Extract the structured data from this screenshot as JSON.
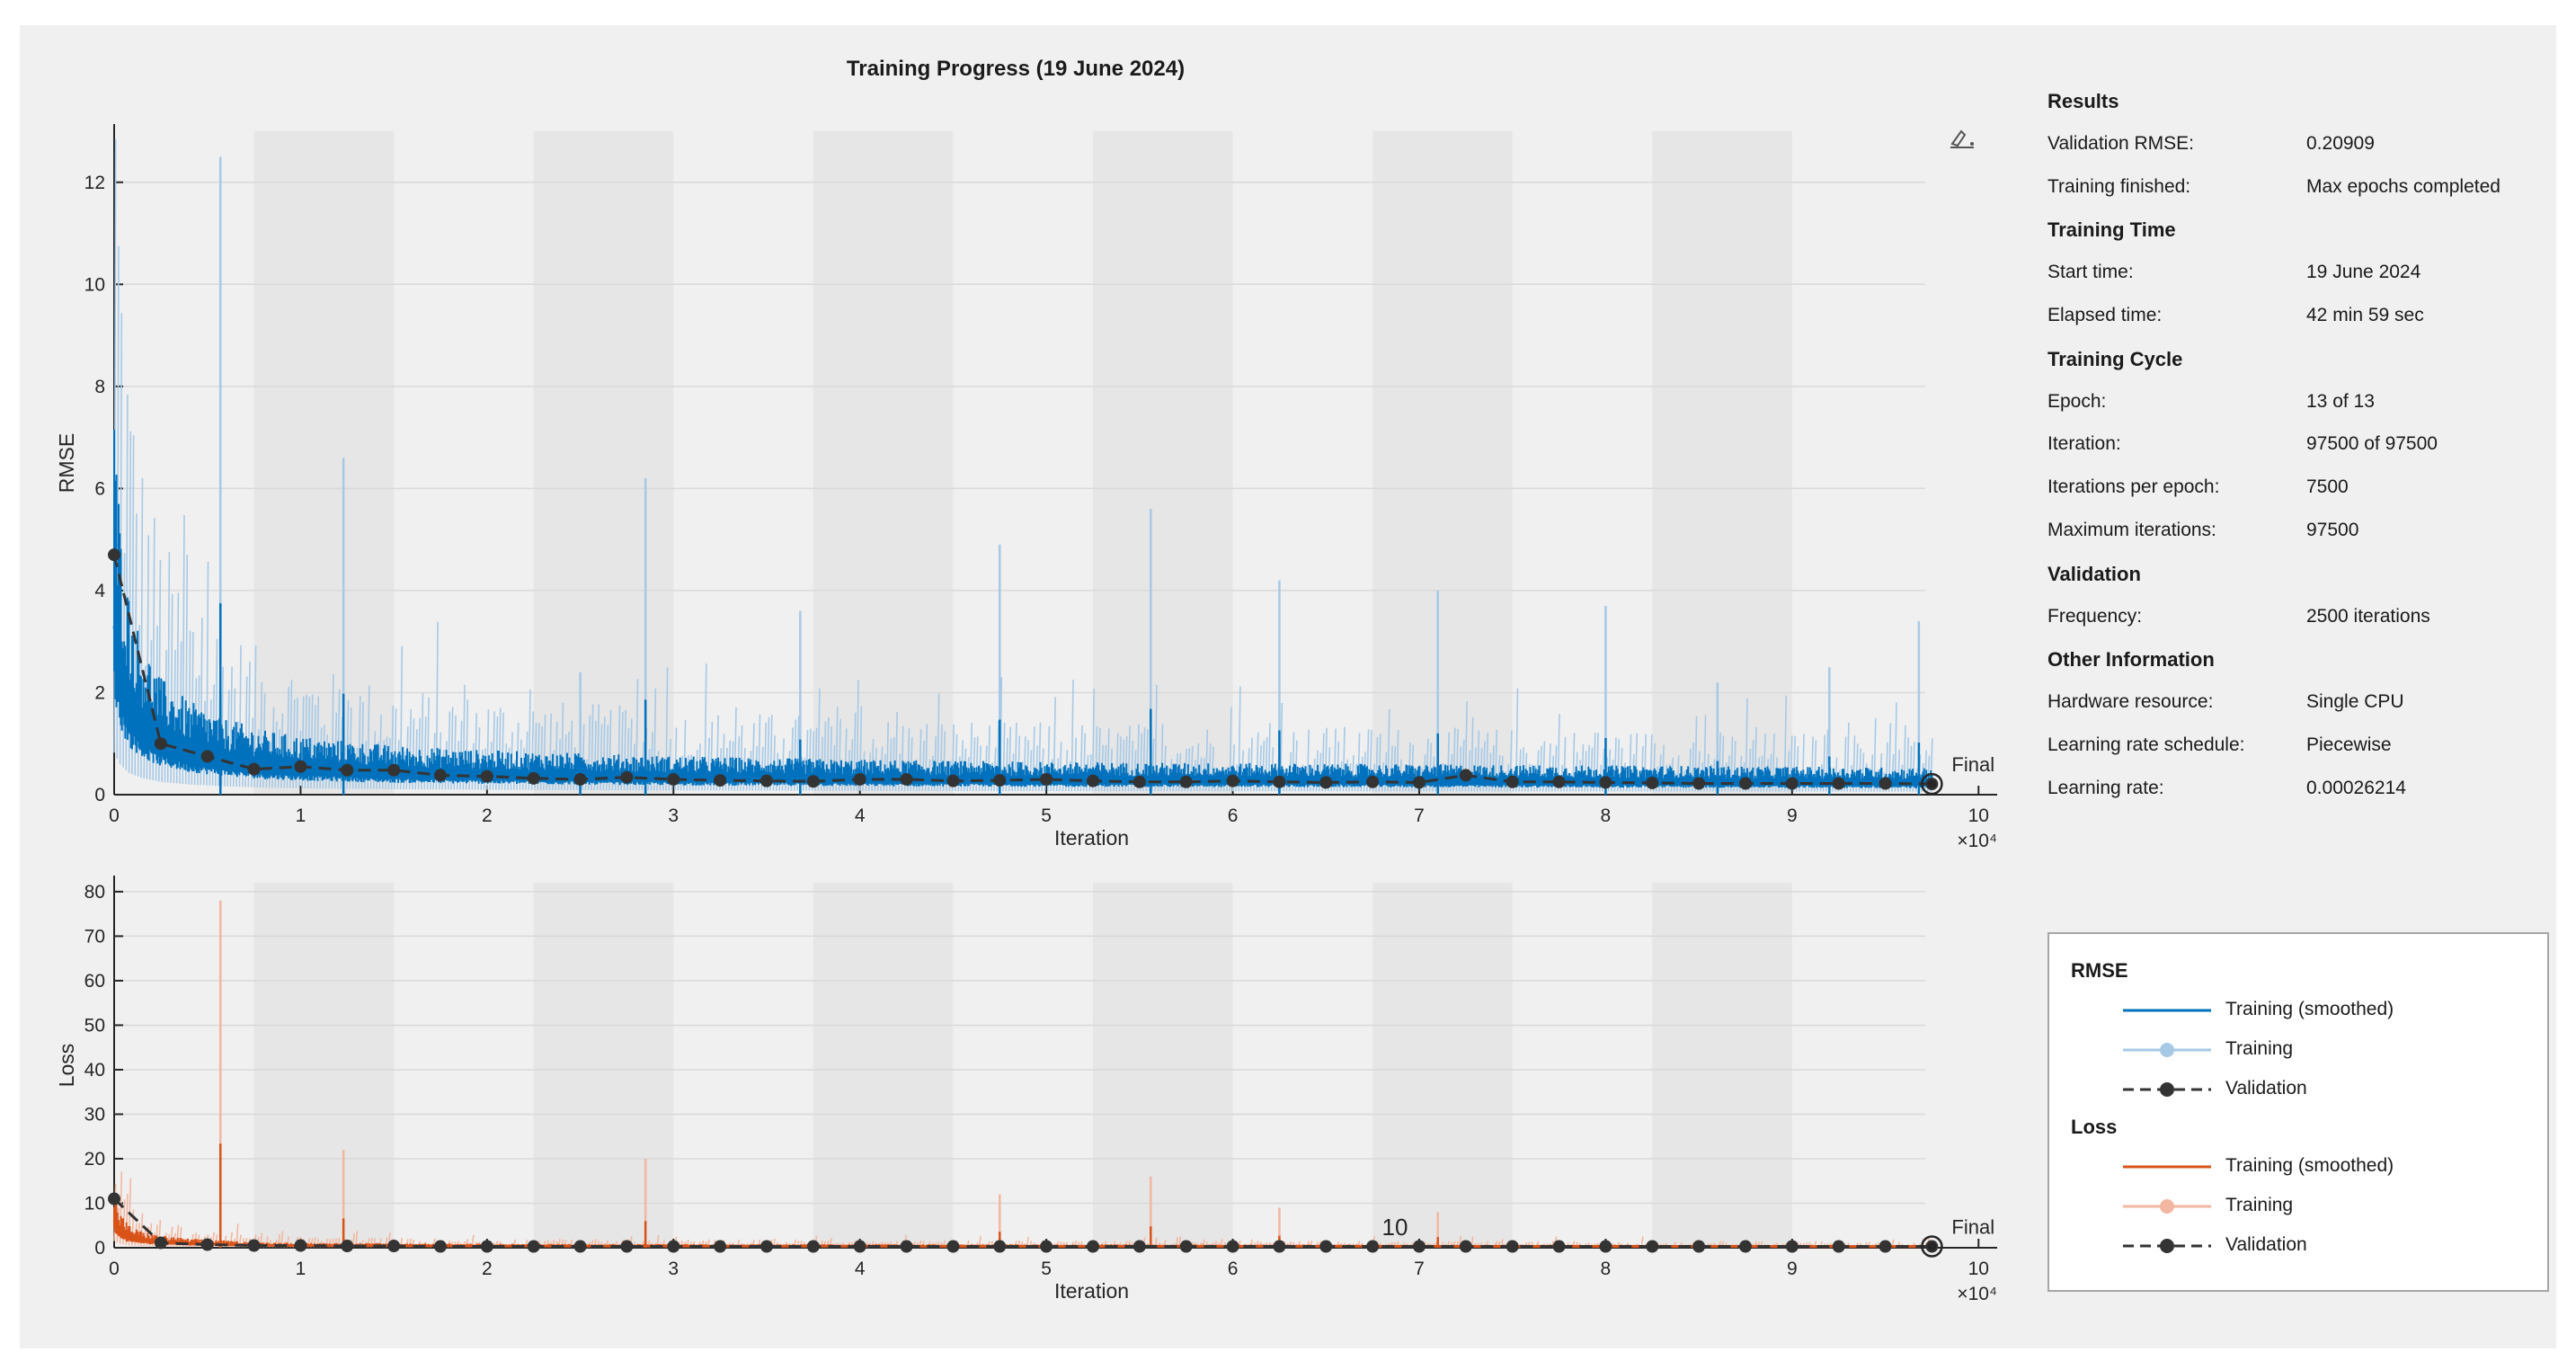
{
  "chart_data": {
    "type": "line",
    "title": "Training Progress (19 June 2024)",
    "x_exponent_label": "×10⁴",
    "epochs": 13,
    "iterations_per_epoch": 7500,
    "final_label": "Final",
    "annotation": "10",
    "panels": [
      {
        "name": "RMSE",
        "ylabel": "RMSE",
        "xlabel": "Iteration",
        "xlim": [
          0,
          101000
        ],
        "ylim": [
          0,
          13
        ],
        "xticks": [
          0,
          10000,
          20000,
          30000,
          40000,
          50000,
          60000,
          70000,
          80000,
          90000,
          100000
        ],
        "xtick_labels": [
          "0",
          "1",
          "2",
          "3",
          "4",
          "5",
          "6",
          "7",
          "8",
          "9",
          "10"
        ],
        "yticks": [
          0,
          2,
          4,
          6,
          8,
          10,
          12
        ],
        "ytick_labels": [
          "0",
          "2",
          "4",
          "6",
          "8",
          "10",
          "12"
        ],
        "series": [
          {
            "name": "Training (smoothed)",
            "color": "#0072bd",
            "x": [
              0,
              300,
              800,
              1500,
              2500,
              4000,
              6000,
              8000,
              10000,
              15000,
              20000,
              30000,
              40000,
              50000,
              60000,
              70000,
              80000,
              90000,
              97500
            ],
            "y": [
              3.3,
              2.4,
              1.7,
              1.3,
              1.0,
              0.8,
              0.65,
              0.55,
              0.5,
              0.42,
              0.38,
              0.33,
              0.3,
              0.28,
              0.27,
              0.26,
              0.25,
              0.24,
              0.23
            ]
          },
          {
            "name": "Training",
            "color": "#a6c9e6",
            "spikes_x": [
              5700,
              12300,
              25000,
              28500,
              36800,
              47500,
              55600,
              62500,
              71000,
              80000,
              86000,
              92000,
              96800
            ],
            "spikes_y": [
              12.5,
              6.6,
              2.4,
              6.2,
              3.6,
              4.9,
              5.6,
              4.2,
              4.0,
              3.7,
              2.2,
              2.5,
              3.4
            ]
          },
          {
            "name": "Validation",
            "color": "#333333",
            "x": [
              0,
              2500,
              5000,
              7500,
              10000,
              12500,
              15000,
              17500,
              20000,
              22500,
              25000,
              27500,
              30000,
              32500,
              35000,
              37500,
              40000,
              42500,
              45000,
              47500,
              50000,
              52500,
              55000,
              57500,
              60000,
              62500,
              65000,
              67500,
              70000,
              72500,
              75000,
              77500,
              80000,
              82500,
              85000,
              87500,
              90000,
              92500,
              95000,
              97500
            ],
            "y": [
              4.7,
              1.0,
              0.75,
              0.5,
              0.55,
              0.48,
              0.48,
              0.38,
              0.36,
              0.32,
              0.3,
              0.34,
              0.3,
              0.28,
              0.27,
              0.26,
              0.3,
              0.3,
              0.27,
              0.28,
              0.3,
              0.27,
              0.25,
              0.25,
              0.27,
              0.25,
              0.24,
              0.25,
              0.24,
              0.38,
              0.25,
              0.25,
              0.24,
              0.23,
              0.22,
              0.22,
              0.22,
              0.22,
              0.22,
              0.21
            ]
          }
        ]
      },
      {
        "name": "Loss",
        "ylabel": "Loss",
        "xlabel": "Iteration",
        "xlim": [
          0,
          101000
        ],
        "ylim": [
          0,
          82
        ],
        "xticks": [
          0,
          10000,
          20000,
          30000,
          40000,
          50000,
          60000,
          70000,
          80000,
          90000,
          100000
        ],
        "xtick_labels": [
          "0",
          "1",
          "2",
          "3",
          "4",
          "5",
          "6",
          "7",
          "8",
          "9",
          "10"
        ],
        "yticks": [
          0,
          10,
          20,
          30,
          40,
          50,
          60,
          70,
          80
        ],
        "ytick_labels": [
          "0",
          "10",
          "20",
          "30",
          "40",
          "50",
          "60",
          "70",
          "80"
        ],
        "series": [
          {
            "name": "Training (smoothed)",
            "color": "#d95319",
            "x": [
              0,
              300,
              800,
              1500,
              2500,
              4000,
              6000,
              8000,
              10000,
              20000,
              40000,
              60000,
              80000,
              97500
            ],
            "y": [
              6.0,
              3.5,
              2.2,
              1.6,
              1.2,
              0.9,
              0.7,
              0.55,
              0.5,
              0.4,
              0.35,
              0.32,
              0.3,
              0.28
            ]
          },
          {
            "name": "Training",
            "color": "#f2b7a0",
            "spikes_x": [
              5700,
              12300,
              28500,
              47500,
              55600,
              62500,
              71000
            ],
            "spikes_y": [
              78,
              22,
              20,
              12,
              16,
              9,
              8
            ]
          },
          {
            "name": "Validation",
            "color": "#333333",
            "x": [
              0,
              2500,
              5000,
              7500,
              10000,
              12500,
              15000,
              17500,
              20000,
              22500,
              25000,
              27500,
              30000,
              32500,
              35000,
              37500,
              40000,
              42500,
              45000,
              47500,
              50000,
              52500,
              55000,
              57500,
              60000,
              62500,
              65000,
              67500,
              70000,
              72500,
              75000,
              77500,
              80000,
              82500,
              85000,
              87500,
              90000,
              92500,
              95000,
              97500
            ],
            "y": [
              11,
              1.1,
              0.7,
              0.5,
              0.5,
              0.4,
              0.4,
              0.3,
              0.3,
              0.3,
              0.3,
              0.3,
              0.3,
              0.3,
              0.3,
              0.3,
              0.3,
              0.3,
              0.3,
              0.3,
              0.3,
              0.3,
              0.3,
              0.3,
              0.3,
              0.3,
              0.3,
              0.3,
              0.3,
              0.3,
              0.3,
              0.3,
              0.3,
              0.3,
              0.3,
              0.3,
              0.3,
              0.3,
              0.3,
              0.3
            ]
          }
        ]
      }
    ]
  },
  "info": [
    {
      "type": "head",
      "label": "Results"
    },
    {
      "label": "Validation RMSE:",
      "value": "0.20909"
    },
    {
      "label": "Training finished:",
      "value": "Max epochs completed"
    },
    {
      "type": "head",
      "label": "Training Time"
    },
    {
      "label": "Start time:",
      "value": "19 June 2024"
    },
    {
      "label": "Elapsed time:",
      "value": "42 min 59 sec"
    },
    {
      "type": "head",
      "label": "Training Cycle"
    },
    {
      "label": "Epoch:",
      "value": "13 of 13"
    },
    {
      "label": "Iteration:",
      "value": "97500 of 97500"
    },
    {
      "label": "Iterations per epoch:",
      "value": "7500"
    },
    {
      "label": "Maximum iterations:",
      "value": "97500"
    },
    {
      "type": "head",
      "label": "Validation"
    },
    {
      "label": "Frequency:",
      "value": "2500 iterations"
    },
    {
      "type": "head",
      "label": "Other Information"
    },
    {
      "label": "Hardware resource:",
      "value": "Single CPU"
    },
    {
      "label": "Learning rate schedule:",
      "value": "Piecewise"
    },
    {
      "label": "Learning rate:",
      "value": "0.00026214"
    }
  ],
  "legend": {
    "groups": [
      {
        "title": "RMSE",
        "items": [
          {
            "label": "Training (smoothed)",
            "style": "solid",
            "color": "#0072bd"
          },
          {
            "label": "Training",
            "style": "marker",
            "color": "#a6c9e6"
          },
          {
            "label": "Validation",
            "style": "dashed-marker",
            "color": "#333333"
          }
        ]
      },
      {
        "title": "Loss",
        "items": [
          {
            "label": "Training (smoothed)",
            "style": "solid",
            "color": "#d95319"
          },
          {
            "label": "Training",
            "style": "marker",
            "color": "#f2b7a0"
          },
          {
            "label": "Validation",
            "style": "dashed-marker",
            "color": "#333333"
          }
        ]
      }
    ]
  },
  "toolbar_icon": "axes-toolbar-icon"
}
